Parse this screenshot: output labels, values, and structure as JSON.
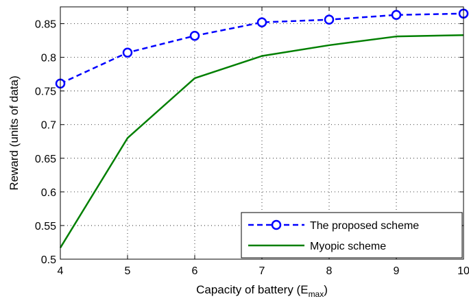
{
  "chart_data": {
    "type": "line",
    "title": "",
    "xlabel": "Capacity of battery (E",
    "xlabel_sub": "max",
    "xlabel_close": ")",
    "ylabel": "Reward (units of data)",
    "xlim": [
      4,
      10
    ],
    "ylim": [
      0.5,
      0.875
    ],
    "xticks": [
      4,
      5,
      6,
      7,
      8,
      9,
      10
    ],
    "yticks": [
      0.5,
      0.55,
      0.6,
      0.65,
      0.7,
      0.75,
      0.8,
      0.85
    ],
    "ytick_labels": [
      "0.5",
      "0.55",
      "0.6",
      "0.65",
      "0.7",
      "0.75",
      "0.8",
      "0.85"
    ],
    "grid": true,
    "legend_position": "bottom-right",
    "x": [
      4,
      5,
      6,
      7,
      8,
      9,
      10
    ],
    "series": [
      {
        "name": "The proposed scheme",
        "values": [
          0.761,
          0.807,
          0.832,
          0.852,
          0.856,
          0.863,
          0.865
        ],
        "color": "#0000ff",
        "style": "dashed",
        "marker": "circle"
      },
      {
        "name": "Myopic scheme",
        "values": [
          0.517,
          0.68,
          0.769,
          0.802,
          0.818,
          0.831,
          0.833
        ],
        "color": "#007f00",
        "style": "solid",
        "marker": "none"
      }
    ]
  }
}
